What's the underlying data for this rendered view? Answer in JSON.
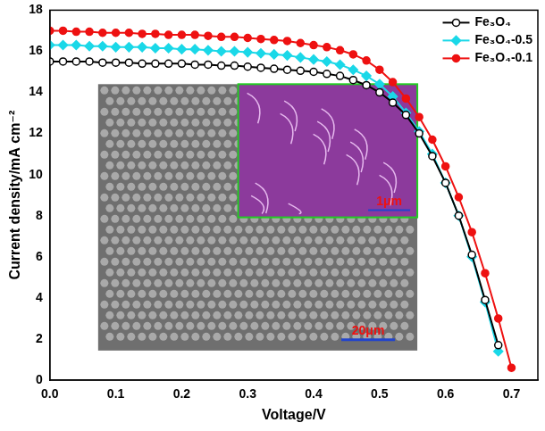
{
  "chart_data": {
    "type": "line",
    "x_label": "Voltage/V",
    "y_label": "Current density/mA cm⁻²",
    "x": [
      0,
      0.02,
      0.04,
      0.06,
      0.08,
      0.1,
      0.12,
      0.14,
      0.16,
      0.18,
      0.2,
      0.22,
      0.24,
      0.26,
      0.28,
      0.3,
      0.32,
      0.34,
      0.36,
      0.38,
      0.4,
      0.42,
      0.44,
      0.46,
      0.48,
      0.5,
      0.52,
      0.54,
      0.56,
      0.58,
      0.6,
      0.62,
      0.64,
      0.66,
      0.68,
      0.7
    ],
    "series": [
      {
        "name": "Fe₃O₄",
        "color": "#000000",
        "marker": "open_circle",
        "values": [
          15.5,
          15.5,
          15.5,
          15.5,
          15.45,
          15.45,
          15.45,
          15.4,
          15.4,
          15.4,
          15.4,
          15.35,
          15.35,
          15.3,
          15.3,
          15.25,
          15.2,
          15.15,
          15.1,
          15.05,
          15.0,
          14.9,
          14.8,
          14.6,
          14.35,
          14.0,
          13.5,
          12.9,
          12.0,
          10.9,
          9.6,
          8.0,
          6.1,
          3.9,
          1.7,
          null
        ]
      },
      {
        "name": "Fe₃O₄-0.5",
        "color": "#1ad8e8",
        "marker": "diamond",
        "values": [
          16.3,
          16.3,
          16.3,
          16.25,
          16.25,
          16.2,
          16.2,
          16.2,
          16.15,
          16.15,
          16.1,
          16.1,
          16.05,
          16.0,
          16.0,
          15.95,
          15.9,
          15.85,
          15.8,
          15.7,
          15.6,
          15.5,
          15.35,
          15.1,
          14.8,
          14.4,
          13.8,
          13.0,
          12.1,
          11.0,
          9.6,
          8.0,
          6.0,
          3.8,
          1.4,
          null
        ]
      },
      {
        "name": "Fe₃O₄-0.1",
        "color": "#ee1111",
        "marker": "circle",
        "values": [
          17.0,
          17.0,
          16.95,
          16.95,
          16.9,
          16.9,
          16.9,
          16.85,
          16.85,
          16.8,
          16.8,
          16.8,
          16.75,
          16.7,
          16.7,
          16.65,
          16.6,
          16.55,
          16.5,
          16.4,
          16.3,
          16.2,
          16.05,
          15.85,
          15.55,
          15.1,
          14.5,
          13.7,
          12.8,
          11.7,
          10.4,
          8.9,
          7.2,
          5.2,
          3.0,
          0.6
        ]
      }
    ],
    "xlim": [
      0,
      0.74
    ],
    "ylim": [
      0,
      18
    ],
    "xticks": [
      {
        "value": 0,
        "label": "0.0"
      },
      0.1,
      0.2,
      0.3,
      0.4,
      0.5,
      0.6,
      0.7
    ],
    "yticks": [
      0,
      2,
      4,
      6,
      8,
      10,
      12,
      14,
      16,
      18
    ],
    "grid": false,
    "legend": "upper right",
    "annotations": [
      "20μm",
      "1μm"
    ]
  }
}
